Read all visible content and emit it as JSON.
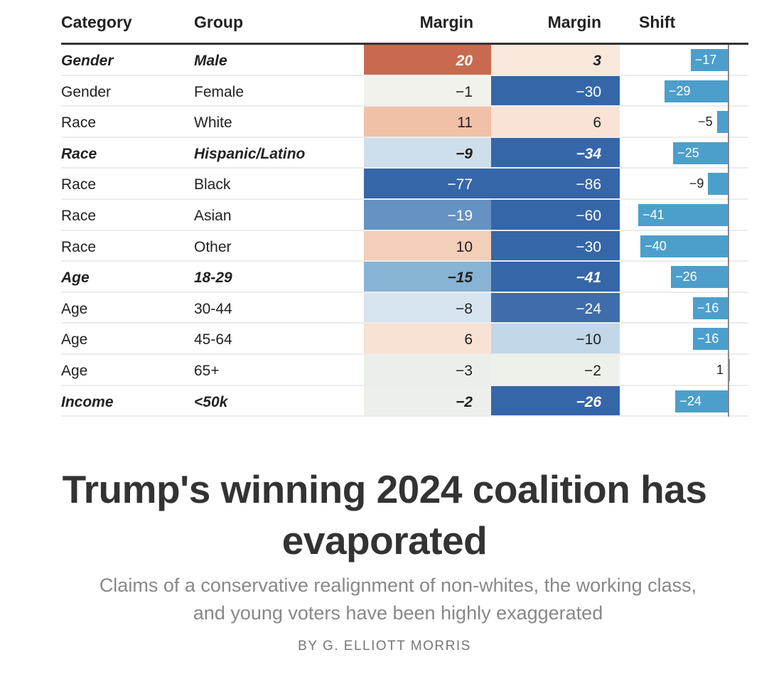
{
  "chart_data": {
    "type": "table",
    "title": "",
    "columns": [
      "Category",
      "Group",
      "Margin",
      "Margin",
      "Shift"
    ],
    "shift_axis": {
      "zero": 0,
      "range": [
        -45,
        5
      ]
    },
    "rows": [
      {
        "category": "Gender",
        "group": "Male",
        "margin1": "20",
        "margin2": "3",
        "shift": -17,
        "shift_label": "−17",
        "bold": true,
        "color1": "#c96a50",
        "color2": "#f8e8dc",
        "text1": "#ffffff",
        "text2": "#222222"
      },
      {
        "category": "Gender",
        "group": "Female",
        "margin1": "−1",
        "margin2": "−30",
        "shift": -29,
        "shift_label": "−29",
        "bold": false,
        "color1": "#f1f2ec",
        "color2": "#3566a8",
        "text1": "#222222",
        "text2": "#ffffff"
      },
      {
        "category": "Race",
        "group": "White",
        "margin1": "11",
        "margin2": "6",
        "shift": -5,
        "shift_label": "−5",
        "bold": false,
        "color1": "#f1c0a9",
        "color2": "#f8e3d6",
        "text1": "#222222",
        "text2": "#222222"
      },
      {
        "category": "Race",
        "group": "Hispanic/Latino",
        "margin1": "−9",
        "margin2": "−34",
        "shift": -25,
        "shift_label": "−25",
        "bold": true,
        "color1": "#cedfeb",
        "color2": "#3566a8",
        "text1": "#222222",
        "text2": "#ffffff"
      },
      {
        "category": "Race",
        "group": "Black",
        "margin1": "−77",
        "margin2": "−86",
        "shift": -9,
        "shift_label": "−9",
        "bold": false,
        "color1": "#3566a8",
        "color2": "#3566a8",
        "text1": "#ffffff",
        "text2": "#ffffff"
      },
      {
        "category": "Race",
        "group": "Asian",
        "margin1": "−19",
        "margin2": "−60",
        "shift": -41,
        "shift_label": "−41",
        "bold": false,
        "color1": "#6592c1",
        "color2": "#3566a8",
        "text1": "#ffffff",
        "text2": "#ffffff"
      },
      {
        "category": "Race",
        "group": "Other",
        "margin1": "10",
        "margin2": "−30",
        "shift": -40,
        "shift_label": "−40",
        "bold": false,
        "color1": "#f3ceb8",
        "color2": "#3566a8",
        "text1": "#222222",
        "text2": "#ffffff"
      },
      {
        "category": "Age",
        "group": "18-29",
        "margin1": "−15",
        "margin2": "−41",
        "shift": -26,
        "shift_label": "−26",
        "bold": true,
        "color1": "#87b3d5",
        "color2": "#3566a8",
        "text1": "#222222",
        "text2": "#ffffff"
      },
      {
        "category": "Age",
        "group": "30-44",
        "margin1": "−8",
        "margin2": "−24",
        "shift": -16,
        "shift_label": "−16",
        "bold": false,
        "color1": "#d6e4f0",
        "color2": "#3f6dab",
        "text1": "#222222",
        "text2": "#ffffff"
      },
      {
        "category": "Age",
        "group": "45-64",
        "margin1": "6",
        "margin2": "−10",
        "shift": -16,
        "shift_label": "−16",
        "bold": false,
        "color1": "#f7e2d4",
        "color2": "#c2d7e7",
        "text1": "#222222",
        "text2": "#222222"
      },
      {
        "category": "Age",
        "group": "65+",
        "margin1": "−3",
        "margin2": "−2",
        "shift": 1,
        "shift_label": "1",
        "bold": false,
        "color1": "#ebefe9",
        "color2": "#eef1ea",
        "text1": "#222222",
        "text2": "#222222"
      },
      {
        "category": "Income",
        "group": "<50k",
        "margin1": "−2",
        "margin2": "−26",
        "shift": -24,
        "shift_label": "−24",
        "bold": true,
        "color1": "#edf0ea",
        "color2": "#3566a8",
        "text1": "#222222",
        "text2": "#ffffff"
      }
    ]
  },
  "header": {
    "category": "Category",
    "group": "Group",
    "margin1": "Margin",
    "margin2": "Margin",
    "shift": "Shift"
  },
  "article": {
    "title_line1": "Trump's winning 2024 coalition has",
    "title_line2": "evaporated",
    "subtitle_line1": "Claims of a conservative realignment of non-whites, the working class,",
    "subtitle_line2": "and young voters have been highly exaggerated",
    "byline": "BY G. ELLIOTT MORRIS"
  },
  "colors": {
    "bar": "#4c9fcb",
    "rule": "#333333"
  }
}
